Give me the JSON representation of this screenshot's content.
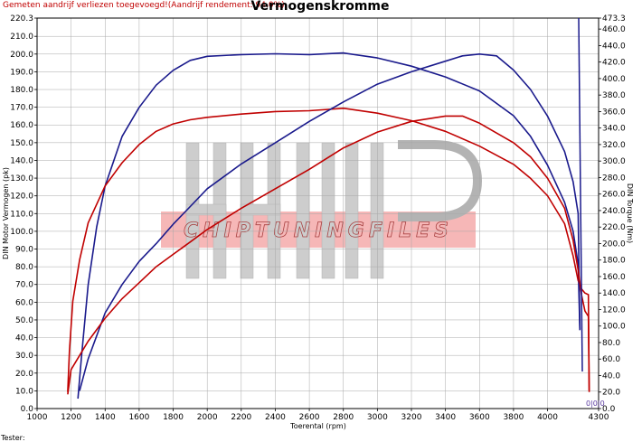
{
  "header": {
    "subtitle": "Gemeten aandrijf verliezen toegevoegd!(Aandrijf rendement: 94.0%)",
    "title": "Vermogenskromme"
  },
  "watermark": {
    "text": "CHIPTUNINGFILES"
  },
  "footer": {
    "label": "Tester:"
  },
  "end_marker": {
    "text": "0|0|0"
  },
  "chart_data": {
    "type": "line",
    "title": "Vermogenskromme",
    "xlabel": "Toerental (rpm)",
    "ylabel": "DIN Motor Vermogen (pk)",
    "y2label": "DIN Torque (Nm)",
    "xlim": [
      1000,
      4300
    ],
    "ylim": [
      0,
      220.3
    ],
    "y2lim": [
      0,
      473.3
    ],
    "grid": true,
    "x_ticks": [
      1000,
      1200,
      1400,
      1600,
      1800,
      2000,
      2200,
      2400,
      2600,
      2800,
      3000,
      3200,
      3400,
      3600,
      3800,
      4000,
      4300
    ],
    "y_ticks": [
      "0.0",
      "10.0",
      "20.0",
      "30.0",
      "40.0",
      "50.0",
      "60.0",
      "70.0",
      "80.0",
      "90.0",
      "100.0",
      "110.0",
      "120.0",
      "130.0",
      "140.0",
      "150.0",
      "160.0",
      "170.0",
      "180.0",
      "190.0",
      "200.0",
      "210.0",
      "220.3"
    ],
    "y2_ticks": [
      "0.0",
      "20.0",
      "40.0",
      "60.0",
      "80.0",
      "100.0",
      "120.0",
      "140.0",
      "160.0",
      "180.0",
      "200.0",
      "220.0",
      "240.0",
      "260.0",
      "280.0",
      "300.0",
      "320.0",
      "340.0",
      "360.0",
      "380.0",
      "400.0",
      "420.0",
      "440.0",
      "460.0",
      "473.3"
    ],
    "series": [
      {
        "color": "#1a1a8c",
        "axis": "right",
        "points": [
          [
            1240,
            12
          ],
          [
            1260,
            60
          ],
          [
            1300,
            150
          ],
          [
            1350,
            220
          ],
          [
            1400,
            270
          ],
          [
            1500,
            330
          ],
          [
            1600,
            365
          ],
          [
            1700,
            392
          ],
          [
            1800,
            410
          ],
          [
            1900,
            422
          ],
          [
            2000,
            427
          ],
          [
            2200,
            429
          ],
          [
            2400,
            430
          ],
          [
            2600,
            429
          ],
          [
            2800,
            431
          ],
          [
            3000,
            425
          ],
          [
            3200,
            415
          ],
          [
            3400,
            402
          ],
          [
            3600,
            385
          ],
          [
            3800,
            355
          ],
          [
            3900,
            330
          ],
          [
            4000,
            295
          ],
          [
            4100,
            250
          ],
          [
            4150,
            215
          ],
          [
            4180,
            175
          ],
          [
            4190,
            95
          ]
        ]
      },
      {
        "color": "#c00000",
        "axis": "right",
        "points": [
          [
            1180,
            20
          ],
          [
            1190,
            70
          ],
          [
            1210,
            130
          ],
          [
            1250,
            180
          ],
          [
            1300,
            225
          ],
          [
            1400,
            270
          ],
          [
            1500,
            298
          ],
          [
            1600,
            320
          ],
          [
            1700,
            336
          ],
          [
            1800,
            345
          ],
          [
            1900,
            350
          ],
          [
            2000,
            353
          ],
          [
            2200,
            357
          ],
          [
            2400,
            360
          ],
          [
            2600,
            361
          ],
          [
            2800,
            364
          ],
          [
            3000,
            358
          ],
          [
            3200,
            349
          ],
          [
            3400,
            336
          ],
          [
            3600,
            318
          ],
          [
            3800,
            296
          ],
          [
            3900,
            279
          ],
          [
            4000,
            258
          ],
          [
            4100,
            224
          ],
          [
            4150,
            185
          ],
          [
            4180,
            155
          ],
          [
            4200,
            145
          ],
          [
            4220,
            140
          ],
          [
            4240,
            138
          ],
          [
            4245,
            20
          ]
        ]
      },
      {
        "color": "#1a1a8c",
        "axis": "left",
        "points": [
          [
            1250,
            10
          ],
          [
            1300,
            28
          ],
          [
            1400,
            54
          ],
          [
            1500,
            70
          ],
          [
            1600,
            83
          ],
          [
            1700,
            93
          ],
          [
            1800,
            104
          ],
          [
            1900,
            114
          ],
          [
            2000,
            124
          ],
          [
            2200,
            138
          ],
          [
            2400,
            150
          ],
          [
            2600,
            162
          ],
          [
            2800,
            173
          ],
          [
            3000,
            183
          ],
          [
            3200,
            190
          ],
          [
            3400,
            196
          ],
          [
            3500,
            199
          ],
          [
            3600,
            200
          ],
          [
            3700,
            199
          ],
          [
            3800,
            191
          ],
          [
            3900,
            180
          ],
          [
            4000,
            165
          ],
          [
            4100,
            145
          ],
          [
            4150,
            128
          ],
          [
            4180,
            110
          ],
          [
            4190,
            45
          ]
        ]
      },
      {
        "color": "#c00000",
        "axis": "left",
        "points": [
          [
            1180,
            8
          ],
          [
            1200,
            22
          ],
          [
            1300,
            38
          ],
          [
            1400,
            51
          ],
          [
            1500,
            62
          ],
          [
            1600,
            71
          ],
          [
            1700,
            80
          ],
          [
            1800,
            87
          ],
          [
            1900,
            94
          ],
          [
            2000,
            101
          ],
          [
            2200,
            113
          ],
          [
            2400,
            124
          ],
          [
            2600,
            135
          ],
          [
            2800,
            147
          ],
          [
            3000,
            156
          ],
          [
            3200,
            162
          ],
          [
            3400,
            165
          ],
          [
            3500,
            165
          ],
          [
            3600,
            161
          ],
          [
            3800,
            150
          ],
          [
            3900,
            142
          ],
          [
            4000,
            130
          ],
          [
            4100,
            113
          ],
          [
            4150,
            95
          ],
          [
            4180,
            78
          ],
          [
            4200,
            64
          ],
          [
            4220,
            55
          ],
          [
            4240,
            52
          ],
          [
            4245,
            10
          ]
        ]
      }
    ]
  }
}
